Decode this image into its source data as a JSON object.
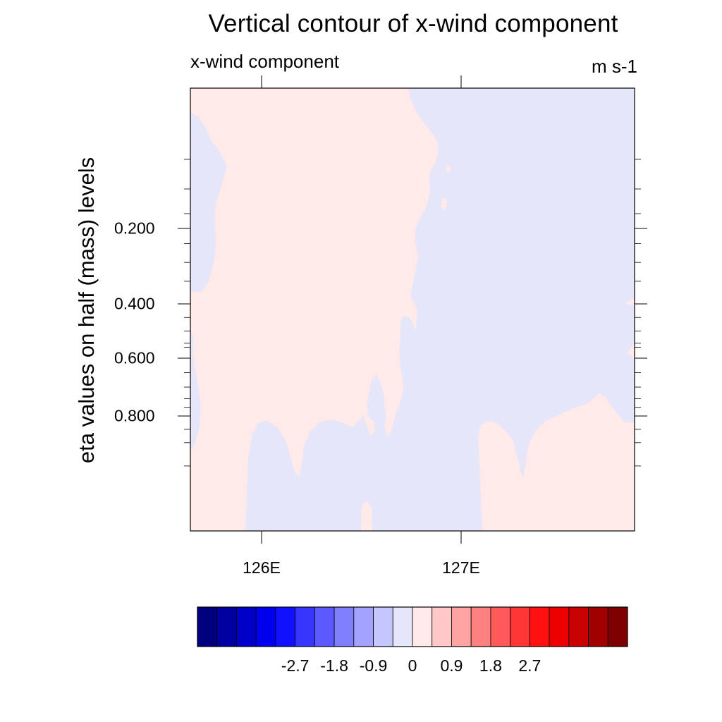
{
  "chart_data": {
    "type": "heatmap",
    "title": "Vertical contour of x-wind component",
    "left_string": "x-wind component",
    "right_string": "m s-1",
    "ylabel": "eta values on half (mass) levels",
    "xlabel": "",
    "x_ticks": [
      {
        "label": "126E",
        "value": 126
      },
      {
        "label": "127E",
        "value": 127
      }
    ],
    "y_ticks": [
      {
        "label": "0.200",
        "value": 0.2
      },
      {
        "label": "0.400",
        "value": 0.4
      },
      {
        "label": "0.600",
        "value": 0.6
      },
      {
        "label": "0.800",
        "value": 0.8
      }
    ],
    "y_axis": "eta (surface at bottom, nonlinear level spacing)",
    "grid": false,
    "fill_values": [
      "-0.45 to 0 (light blue)",
      "0 to 0.45 (light pink)"
    ],
    "regions": [
      {
        "name": "positive-upper-left",
        "sign": "positive",
        "color": "#ffe9e9"
      },
      {
        "name": "negative-east",
        "sign": "negative",
        "color": "#e6e6fa"
      }
    ],
    "colorbar": {
      "levels": [
        -3.15,
        -2.7,
        -2.25,
        -1.8,
        -1.35,
        -0.9,
        -0.45,
        0,
        0.45,
        0.9,
        1.35,
        1.8,
        2.25,
        2.7,
        3.15
      ],
      "labels": [
        "-2.7",
        "-1.8",
        "-0.9",
        "0",
        "0.9",
        "1.8",
        "2.7"
      ],
      "label_values": [
        -2.7,
        -1.8,
        -0.9,
        0,
        0.9,
        1.8,
        2.7
      ],
      "colors": [
        "#00007f",
        "#0000a0",
        "#0000c8",
        "#0000ef",
        "#1111ff",
        "#3636ff",
        "#5a5aff",
        "#8080ff",
        "#a3a3ff",
        "#c6c6ff",
        "#e6e6fa",
        "#ffe9e9",
        "#ffc8c8",
        "#ffa3a3",
        "#ff8080",
        "#ff5a5a",
        "#ff3636",
        "#ff1111",
        "#ef0000",
        "#c80000",
        "#a00000",
        "#7f0000"
      ]
    }
  }
}
